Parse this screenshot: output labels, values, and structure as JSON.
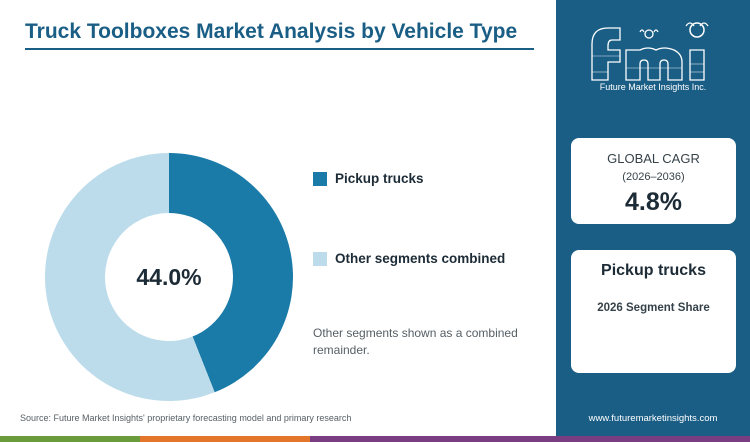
{
  "title": "Truck Toolboxes Market Analysis by Vehicle Type",
  "chart_data": {
    "type": "pie",
    "donut": true,
    "categories": [
      "Pickup trucks",
      "Other segments combined"
    ],
    "values": [
      44.0,
      56.0
    ],
    "colors": [
      "#1a7aa8",
      "#bddceb"
    ],
    "center_label": "44.0%",
    "legend_placement": "right"
  },
  "legend": [
    {
      "label": "Pickup trucks",
      "color": "#1a7aa8"
    },
    {
      "label": "Other segments combined",
      "color": "#bddceb"
    }
  ],
  "note": "Other segments shown as a combined remainder.",
  "source": "Source: Future Market Insights' proprietary forecasting model and primary research",
  "logo": {
    "name": "fmi-logo",
    "text": "fmi",
    "subtext": "Future Market Insights Inc."
  },
  "cagr_card": {
    "label": "GLOBAL CAGR",
    "period": "(2026–2036)",
    "value": "4.8%"
  },
  "segment_card": {
    "title": "Pickup trucks",
    "subtitle": "2026 Segment Share"
  },
  "website": "www.futuremarketinsights.com",
  "colors": {
    "brand_blue": "#1a5e86",
    "bottom_bar": [
      "#6a9c3c",
      "#e3762b",
      "#7a3d82"
    ]
  }
}
